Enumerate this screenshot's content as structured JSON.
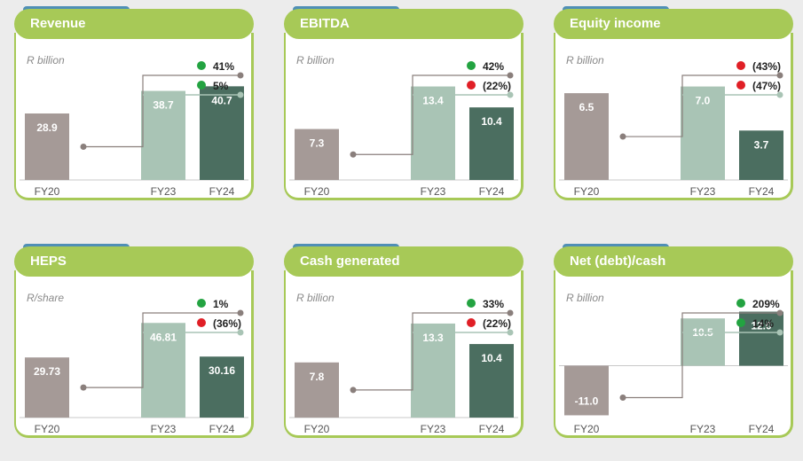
{
  "colors": {
    "fy20": "#a59a97",
    "fy23": "#a9c4b5",
    "fy24": "#4b6e60",
    "positive": "#23a341",
    "negative": "#e01f26",
    "connector": "#8a7f7c",
    "accent": "#a7c957"
  },
  "chart_data": [
    {
      "type": "bar",
      "title": "Revenue",
      "unit": "R billion",
      "categories": [
        "FY20",
        "FY23",
        "FY24"
      ],
      "values": [
        28.9,
        38.7,
        40.7
      ],
      "labels": [
        "28.9",
        "38.7",
        "40.7"
      ],
      "changes": [
        {
          "text": "41%",
          "direction": "positive"
        },
        {
          "text": "5%",
          "direction": "positive"
        }
      ],
      "ylim": [
        0,
        47
      ]
    },
    {
      "type": "bar",
      "title": "EBITDA",
      "unit": "R billion",
      "categories": [
        "FY20",
        "FY23",
        "FY24"
      ],
      "values": [
        7.3,
        13.4,
        10.4
      ],
      "labels": [
        "7.3",
        "13.4",
        "10.4"
      ],
      "changes": [
        {
          "text": "42%",
          "direction": "positive"
        },
        {
          "text": "(22%)",
          "direction": "negative"
        }
      ],
      "ylim": [
        0,
        15.5
      ]
    },
    {
      "type": "bar",
      "title": "Equity income",
      "unit": "R billion",
      "categories": [
        "FY20",
        "FY23",
        "FY24"
      ],
      "values": [
        6.5,
        7.0,
        3.7
      ],
      "labels": [
        "6.5",
        "7.0",
        "3.7"
      ],
      "changes": [
        {
          "text": "(43%)",
          "direction": "negative"
        },
        {
          "text": "(47%)",
          "direction": "negative"
        }
      ],
      "ylim": [
        0,
        8.1
      ]
    },
    {
      "type": "bar",
      "title": "HEPS",
      "unit": "R/share",
      "categories": [
        "FY20",
        "FY23",
        "FY24"
      ],
      "values": [
        29.73,
        46.81,
        30.16
      ],
      "labels": [
        "29.73",
        "46.81",
        "30.16"
      ],
      "changes": [
        {
          "text": "1%",
          "direction": "positive"
        },
        {
          "text": "(36%)",
          "direction": "negative"
        }
      ],
      "ylim": [
        0,
        53.5
      ]
    },
    {
      "type": "bar",
      "title": "Cash generated",
      "unit": "R billion",
      "categories": [
        "FY20",
        "FY23",
        "FY24"
      ],
      "values": [
        7.8,
        13.3,
        10.4
      ],
      "labels": [
        "7.8",
        "13.3",
        "10.4"
      ],
      "changes": [
        {
          "text": "33%",
          "direction": "positive"
        },
        {
          "text": "(22%)",
          "direction": "negative"
        }
      ],
      "ylim": [
        0,
        15.3
      ]
    },
    {
      "type": "bar",
      "title": "Net (debt)/cash",
      "unit": "R billion",
      "categories": [
        "FY20",
        "FY23",
        "FY24"
      ],
      "values": [
        -11.0,
        10.5,
        12.0
      ],
      "labels": [
        "-11.0",
        "10.5",
        "12.0"
      ],
      "changes": [
        {
          "text": "209%",
          "direction": "positive"
        },
        {
          "text": "14%",
          "direction": "positive"
        }
      ],
      "ylim": [
        -11.5,
        12.5
      ]
    }
  ]
}
